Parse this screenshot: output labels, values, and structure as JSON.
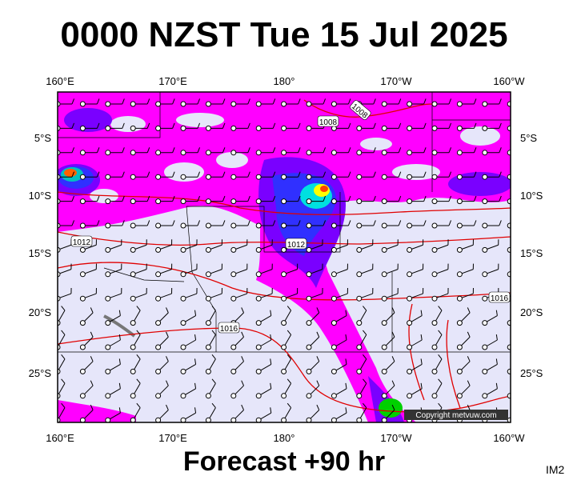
{
  "header": {
    "title": "0000 NZST Tue 15 Jul 2025"
  },
  "map": {
    "top_labels": [
      "160°E",
      "170°E",
      "180°",
      "170°W",
      "160°W"
    ],
    "bottom_labels": [
      "160°E",
      "170°E",
      "180°",
      "170°W",
      "160°W"
    ],
    "left_labels": [
      "5°S",
      "10°S",
      "15°S",
      "20°S",
      "25°S"
    ],
    "right_labels": [
      "5°S",
      "10°S",
      "15°S",
      "20°S",
      "25°S"
    ],
    "contour_labels": [
      "1008",
      "1008",
      "1012",
      "1012",
      "1016",
      "1016"
    ],
    "copyright": "Copyright metvuw.com"
  },
  "footer": {
    "forecast": "Forecast +90 hr",
    "code": "IM2"
  }
}
